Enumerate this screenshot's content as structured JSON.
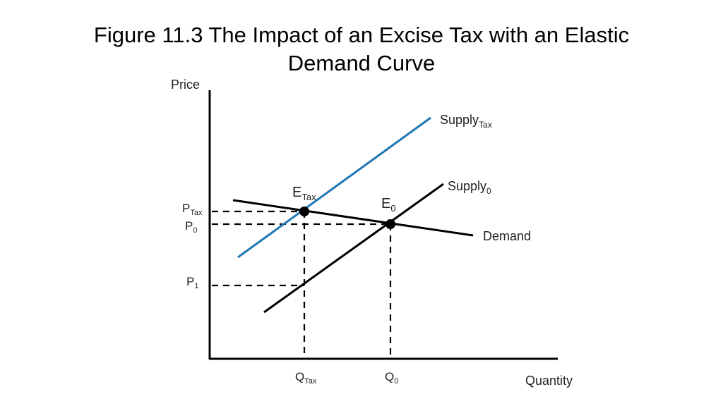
{
  "title": {
    "line1": "Figure 11.3 The Impact of an Excise Tax with an Elastic",
    "line2": "Demand Curve"
  },
  "axes": {
    "y_label": "Price",
    "x_label": "Quantity"
  },
  "curves": {
    "supply_tax": {
      "base": "Supply",
      "sub": "Tax",
      "color": "#1f77b4"
    },
    "supply_0": {
      "base": "Supply",
      "sub": "0",
      "color": "#000000"
    },
    "demand": {
      "label": "Demand",
      "color": "#000000"
    }
  },
  "points": {
    "e_tax": {
      "base": "E",
      "sub": "Tax"
    },
    "e_0": {
      "base": "E",
      "sub": "0"
    }
  },
  "price_ticks": {
    "p_tax": {
      "base": "P",
      "sub": "Tax"
    },
    "p_0": {
      "base": "P",
      "sub": "0"
    },
    "p_1": {
      "base": "P",
      "sub": "1"
    }
  },
  "quantity_ticks": {
    "q_tax": {
      "base": "Q",
      "sub": "Tax"
    },
    "q_0": {
      "base": "Q",
      "sub": "0"
    }
  }
}
